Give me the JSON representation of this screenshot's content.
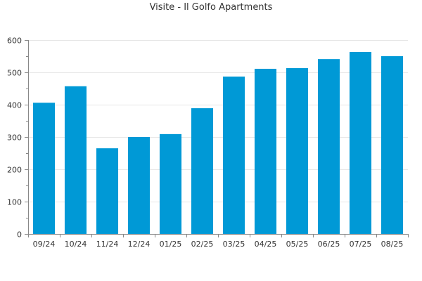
{
  "chart_data": {
    "type": "bar",
    "title": "Visite - Il Golfo Apartments",
    "categories": [
      "09/24",
      "10/24",
      "11/24",
      "12/24",
      "01/25",
      "02/25",
      "03/25",
      "04/25",
      "05/25",
      "06/25",
      "07/25",
      "08/25"
    ],
    "series": [
      {
        "values": [
          406,
          457,
          265,
          300,
          309,
          389,
          487,
          511,
          513,
          541,
          563,
          550
        ]
      }
    ],
    "ylim": [
      0,
      600
    ],
    "yticks": [
      0,
      100,
      200,
      300,
      400,
      500,
      600
    ],
    "xlabel": "",
    "ylabel": "",
    "grid": true,
    "legend": "none",
    "colors": {
      "bar": "#0099d6",
      "grid": "#e6e6e6",
      "axis": "#888888",
      "text": "#333333"
    }
  }
}
